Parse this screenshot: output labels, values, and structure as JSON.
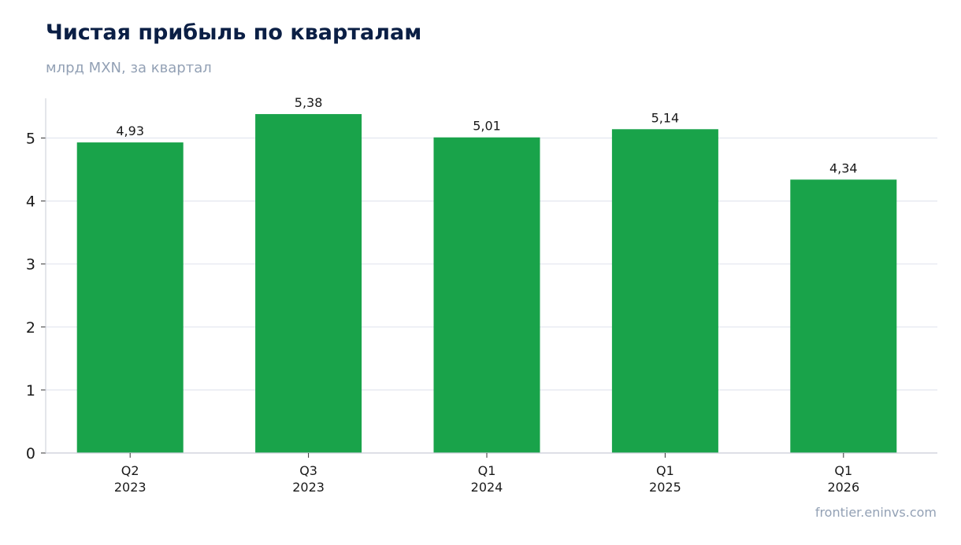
{
  "header": {
    "title": "Чистая прибыль по кварталам",
    "subtitle": "млрд MXN, за квартал"
  },
  "footer": {
    "source": "frontier.eninvs.com"
  },
  "colors": {
    "bar": "#19a34a",
    "grid": "#e3e6ef",
    "axis": "#c9ccd6",
    "title": "#0b1f45",
    "muted": "#93a1b5"
  },
  "chart_data": {
    "type": "bar",
    "categories": [
      [
        "Q2",
        "2023"
      ],
      [
        "Q3",
        "2023"
      ],
      [
        "Q1",
        "2024"
      ],
      [
        "Q1",
        "2025"
      ],
      [
        "Q1",
        "2026"
      ]
    ],
    "values": [
      4.93,
      5.38,
      5.01,
      5.14,
      4.34
    ],
    "value_labels": [
      "4,93",
      "5,38",
      "5,01",
      "5,14",
      "4,34"
    ],
    "yticks": [
      0,
      1,
      2,
      3,
      4,
      5
    ],
    "ylim": [
      0,
      5.63
    ],
    "grid": true,
    "legend": "none"
  }
}
